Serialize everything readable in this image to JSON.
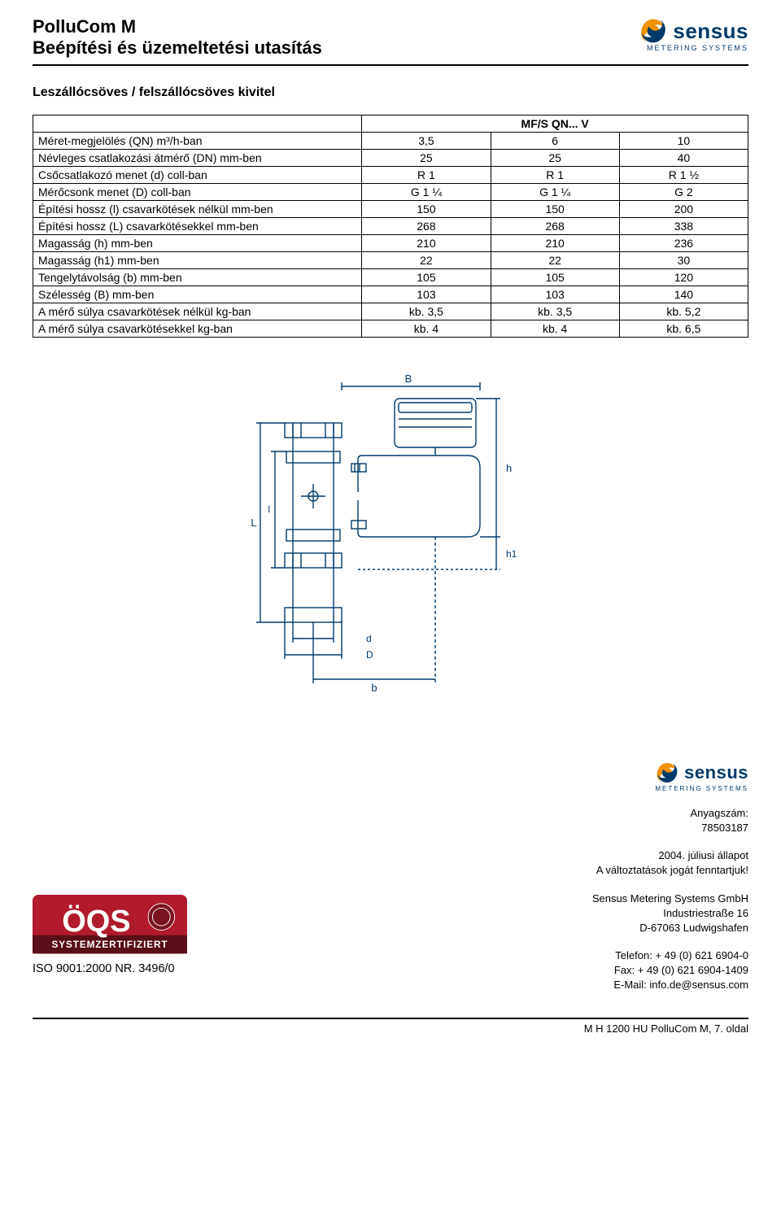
{
  "header": {
    "title_line1": "PolluCom M",
    "title_line2": "Beépítési és üzemeltetési utasítás",
    "logo_text": "sensus",
    "logo_sub": "METERING SYSTEMS",
    "logo_colors": {
      "swirl_orange": "#f39200",
      "swirl_blue": "#003a6b",
      "text": "#003a6b"
    }
  },
  "section_title": "Leszállócsöves / felszállócsöves kivitel",
  "table": {
    "header_main": "MF/S QN... V",
    "columns_pct": [
      46,
      18,
      18,
      18
    ],
    "rows": [
      {
        "label": "Méret-megjelölés (QN) m³/h-ban",
        "v": [
          "3,5",
          "6",
          "10"
        ]
      },
      {
        "label": "Névleges csatlakozási átmérő (DN) mm-ben",
        "v": [
          "25",
          "25",
          "40"
        ]
      },
      {
        "label": "Csőcsatlakozó menet (d) coll-ban",
        "v": [
          "R 1",
          "R 1",
          "R 1 ½"
        ]
      },
      {
        "label": "Mérőcsonk menet (D) coll-ban",
        "v": [
          "G 1 ¼",
          "G 1 ¼",
          "G 2"
        ]
      },
      {
        "label": "Építési hossz (l) csavarkötések nélkül mm-ben",
        "v": [
          "150",
          "150",
          "200"
        ]
      },
      {
        "label": "Építési hossz (L) csavarkötésekkel mm-ben",
        "v": [
          "268",
          "268",
          "338"
        ]
      },
      {
        "label": "Magasság (h) mm-ben",
        "v": [
          "210",
          "210",
          "236"
        ]
      },
      {
        "label": "Magasság (h1) mm-ben",
        "v": [
          "22",
          "22",
          "30"
        ]
      },
      {
        "label": "Tengelytávolság (b) mm-ben",
        "v": [
          "105",
          "105",
          "120"
        ]
      },
      {
        "label": "Szélesség (B) mm-ben",
        "v": [
          "103",
          "103",
          "140"
        ]
      },
      {
        "label": "A mérő súlya csavarkötések nélkül kg-ban",
        "v": [
          "kb. 3,5",
          "kb. 3,5",
          "kb. 5,2"
        ]
      },
      {
        "label": "A mérő súlya csavarkötésekkel kg-ban",
        "v": [
          "kb. 4",
          "kb. 4",
          "kb. 6,5"
        ]
      }
    ]
  },
  "diagram": {
    "labels": {
      "B": "B",
      "h": "h",
      "h1": "h1",
      "L": "L",
      "l": "l",
      "d": "d",
      "D": "D",
      "b": "b"
    },
    "stroke": "#003a6b",
    "stroke_width": 1.4
  },
  "footer": {
    "cert": {
      "top_text": "ÖQS",
      "band_text": "SYSTEMZERTIFIZIERT",
      "iso_text": "ISO 9001:2000 NR. 3496/0",
      "red": "#b01b2e",
      "dark": "#5a0e18"
    },
    "anyag_label": "Anyagszám:",
    "anyag_value": "78503187",
    "date_line1": "2004. júliusi állapot",
    "date_line2": "A változtatások jogát fenntartjuk!",
    "company": "Sensus Metering Systems GmbH",
    "addr1": "Industriestraße 16",
    "addr2": "D-67063 Ludwigshafen",
    "tel": "Telefon: + 49 (0) 621 6904-0",
    "fax": "Fax: + 49 (0) 621 6904-1409",
    "email": "E-Mail: info.de@sensus.com"
  },
  "page_footer": "M H 1200 HU PolluCom M,  7. oldal"
}
